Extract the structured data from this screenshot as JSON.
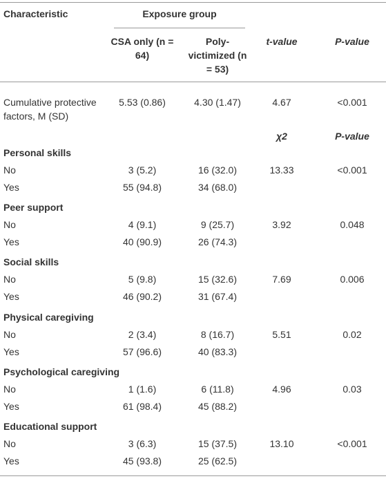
{
  "table": {
    "header": {
      "characteristic": "Characteristic",
      "exposure_group": "Exposure group",
      "columns": [
        "CSA only (n = 64)",
        "Poly-victimized (n = 53)",
        "t-value",
        "P-value"
      ]
    },
    "continuous_row": [
      "Cumulative protective factors, M (SD)",
      "5.53 (0.86)",
      "4.30 (1.47)",
      "4.67",
      "<0.001"
    ],
    "subheader": [
      "χ2",
      "P-value"
    ],
    "sections": [
      {
        "title": "Personal skills",
        "rows": [
          [
            "No",
            "3 (5.2)",
            "16 (32.0)",
            "13.33",
            "<0.001"
          ],
          [
            "Yes",
            "55 (94.8)",
            "34 (68.0)"
          ]
        ]
      },
      {
        "title": "Peer support",
        "rows": [
          [
            "No",
            "4 (9.1)",
            "9 (25.7)",
            "3.92",
            "0.048"
          ],
          [
            "Yes",
            "40 (90.9)",
            "26 (74.3)"
          ]
        ]
      },
      {
        "title": "Social skills",
        "rows": [
          [
            "No",
            "5 (9.8)",
            "15 (32.6)",
            "7.69",
            "0.006"
          ],
          [
            "Yes",
            "46 (90.2)",
            "31 (67.4)"
          ]
        ]
      },
      {
        "title": "Physical caregiving",
        "rows": [
          [
            "No",
            "2 (3.4)",
            "8 (16.7)",
            "5.51",
            "0.02"
          ],
          [
            "Yes",
            "57 (96.6)",
            "40 (83.3)"
          ]
        ]
      },
      {
        "title": "Psychological caregiving",
        "rows": [
          [
            "No",
            "1 (1.6)",
            "6 (11.8)",
            "4.96",
            "0.03"
          ],
          [
            "Yes",
            "61 (98.4)",
            "45 (88.2)"
          ]
        ]
      },
      {
        "title": "Educational support",
        "rows": [
          [
            "No",
            "3 (6.3)",
            "15 (37.5)",
            "13.10",
            "<0.001"
          ],
          [
            "Yes",
            "45 (93.8)",
            "25 (62.5)"
          ]
        ]
      }
    ]
  }
}
